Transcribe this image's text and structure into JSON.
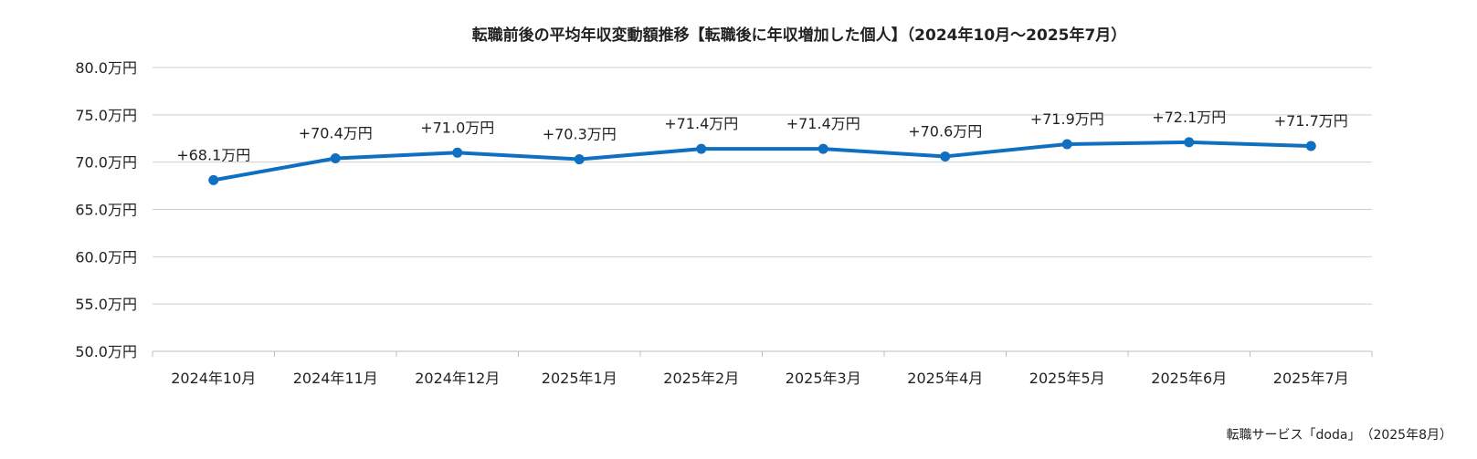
{
  "chart_data": {
    "type": "line",
    "title": "転職前後の平均年収変動額推移【転職後に年収増加した個人】（2024年10月～2025年7月）",
    "xlabel": "",
    "ylabel": "",
    "categories": [
      "2024年10月",
      "2024年11月",
      "2024年12月",
      "2025年1月",
      "2025年2月",
      "2025年3月",
      "2025年4月",
      "2025年5月",
      "2025年6月",
      "2025年7月"
    ],
    "series": [
      {
        "values": [
          68.1,
          70.4,
          71.0,
          70.3,
          71.4,
          71.4,
          70.6,
          71.9,
          72.1,
          71.7
        ],
        "data_labels": [
          "+68.1万円",
          "+70.4万円",
          "+71.0万円",
          "+70.3万円",
          "+71.4万円",
          "+71.4万円",
          "+70.6万円",
          "+71.9万円",
          "+72.1万円",
          "+71.7万円"
        ],
        "color": "#0F6FC0"
      }
    ],
    "ylim": [
      50,
      80
    ],
    "y_ticks": [
      50,
      55,
      60,
      65,
      70,
      75,
      80
    ],
    "y_tick_labels": [
      "50.0万円",
      "55.0万円",
      "60.0万円",
      "65.0万円",
      "70.0万円",
      "75.0万円",
      "80.0万円"
    ],
    "grid": true,
    "legend": "none",
    "source_note": "転職サービス「doda」　（2025年8月）"
  }
}
